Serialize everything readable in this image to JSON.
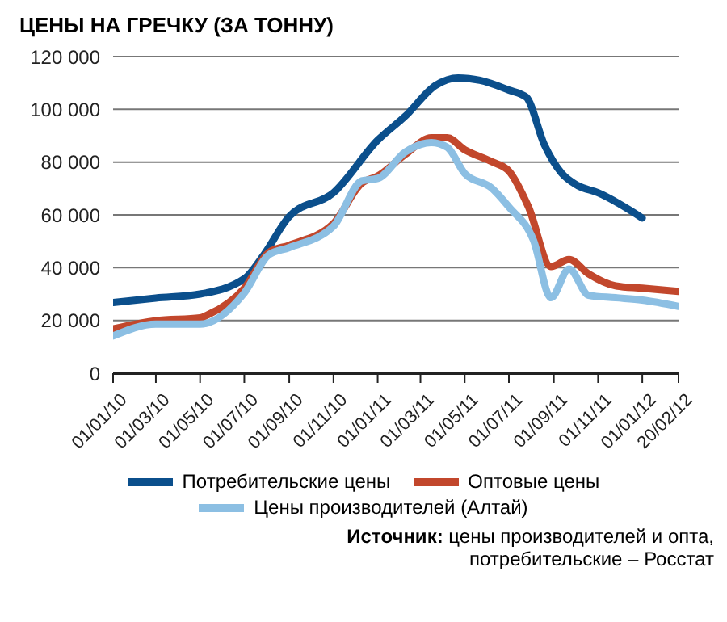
{
  "chart_data": {
    "type": "line",
    "title": "ЦЕНЫ НА ГРЕЧКУ (ЗА ТОННУ)",
    "annotations": [
      "Источник: цены производителей и опта, потребительские – Росстат"
    ],
    "series": [
      {
        "name": "Потребительские цены",
        "color": "#0b4f8c",
        "x": [
          "2010-01-01",
          "2010-03-01",
          "2010-05-01",
          "2010-07-01",
          "2010-07-28",
          "2010-09-01",
          "2010-11-01",
          "2011-01-01",
          "2011-02-08",
          "2011-03-22",
          "2011-04-22",
          "2011-05-22",
          "2011-07-01",
          "2011-07-25",
          "2011-08-19",
          "2011-09-12",
          "2011-10-04",
          "2011-11-01",
          "2012-01-01"
        ],
        "values": [
          26800,
          28500,
          30000,
          35800,
          44900,
          59400,
          68400,
          88300,
          97400,
          109100,
          111900,
          111000,
          107300,
          104600,
          86500,
          75700,
          71100,
          68400,
          58800
        ]
      },
      {
        "name": "Оптовые цены",
        "color": "#c2472c",
        "x": [
          "2010-01-01",
          "2010-03-01",
          "2010-05-01",
          "2010-05-13",
          "2010-07-01",
          "2010-08-04",
          "2010-09-01",
          "2010-11-01",
          "2010-12-10",
          "2011-01-01",
          "2011-02-08",
          "2011-03-16",
          "2011-04-07",
          "2011-05-01",
          "2011-06-07",
          "2011-07-01",
          "2011-07-28",
          "2011-08-28",
          "2011-09-22",
          "2011-10-19",
          "2011-11-25",
          "2012-01-01",
          "2012-02-20"
        ],
        "values": [
          16800,
          19900,
          21000,
          22300,
          32200,
          45800,
          48500,
          56700,
          72000,
          74700,
          82900,
          89200,
          89200,
          84700,
          80200,
          76600,
          63000,
          40400,
          43100,
          37600,
          33100,
          32200,
          31000
        ]
      },
      {
        "name": "Цены производителей (Алтай)",
        "color": "#8cbfe3",
        "x": [
          "2010-01-01",
          "2010-03-01",
          "2010-05-01",
          "2010-07-01",
          "2010-08-04",
          "2010-09-01",
          "2010-11-01",
          "2010-12-10",
          "2011-01-01",
          "2011-02-08",
          "2011-03-16",
          "2011-04-07",
          "2011-05-01",
          "2011-06-07",
          "2011-07-01",
          "2011-08-04",
          "2011-08-28",
          "2011-09-22",
          "2011-10-19",
          "2011-11-25",
          "2012-01-01",
          "2012-02-20"
        ],
        "values": [
          14100,
          18600,
          18600,
          30400,
          44900,
          47600,
          55700,
          72900,
          73800,
          83800,
          87400,
          85600,
          75700,
          70200,
          63000,
          50300,
          28600,
          39500,
          29500,
          28600,
          27700,
          25300
        ]
      }
    ],
    "xlim": [
      "2010-01-01",
      "2012-02-20"
    ],
    "xticks": [
      {
        "value": "2010-01-01",
        "label": "01/01/10"
      },
      {
        "value": "2010-03-01",
        "label": "01/03/10"
      },
      {
        "value": "2010-05-01",
        "label": "01/05/10"
      },
      {
        "value": "2010-07-01",
        "label": "01/07/10"
      },
      {
        "value": "2010-09-01",
        "label": "01/09/10"
      },
      {
        "value": "2010-11-01",
        "label": "01/11/10"
      },
      {
        "value": "2011-01-01",
        "label": "01/01/11"
      },
      {
        "value": "2011-03-01",
        "label": "01/03/11"
      },
      {
        "value": "2011-05-01",
        "label": "01/05/11"
      },
      {
        "value": "2011-07-01",
        "label": "01/07/11"
      },
      {
        "value": "2011-09-01",
        "label": "01/09/11"
      },
      {
        "value": "2011-11-01",
        "label": "01/11/11"
      },
      {
        "value": "2012-01-01",
        "label": "01/01/12"
      },
      {
        "value": "2012-02-20",
        "label": "20/02/12"
      }
    ],
    "ylim": [
      0,
      120000
    ],
    "yticks": [
      0,
      {
        "value": 20000,
        "label": "20 000"
      },
      {
        "value": 40000,
        "label": "40 000"
      },
      {
        "value": 60000,
        "label": "60 000"
      },
      {
        "value": 80000,
        "label": "80 000"
      },
      {
        "value": 100000,
        "label": "100 000"
      },
      {
        "value": 120000,
        "label": "120 000"
      }
    ],
    "grid": "y",
    "legend": "bottom",
    "marker": "none",
    "line_style": "solid"
  }
}
